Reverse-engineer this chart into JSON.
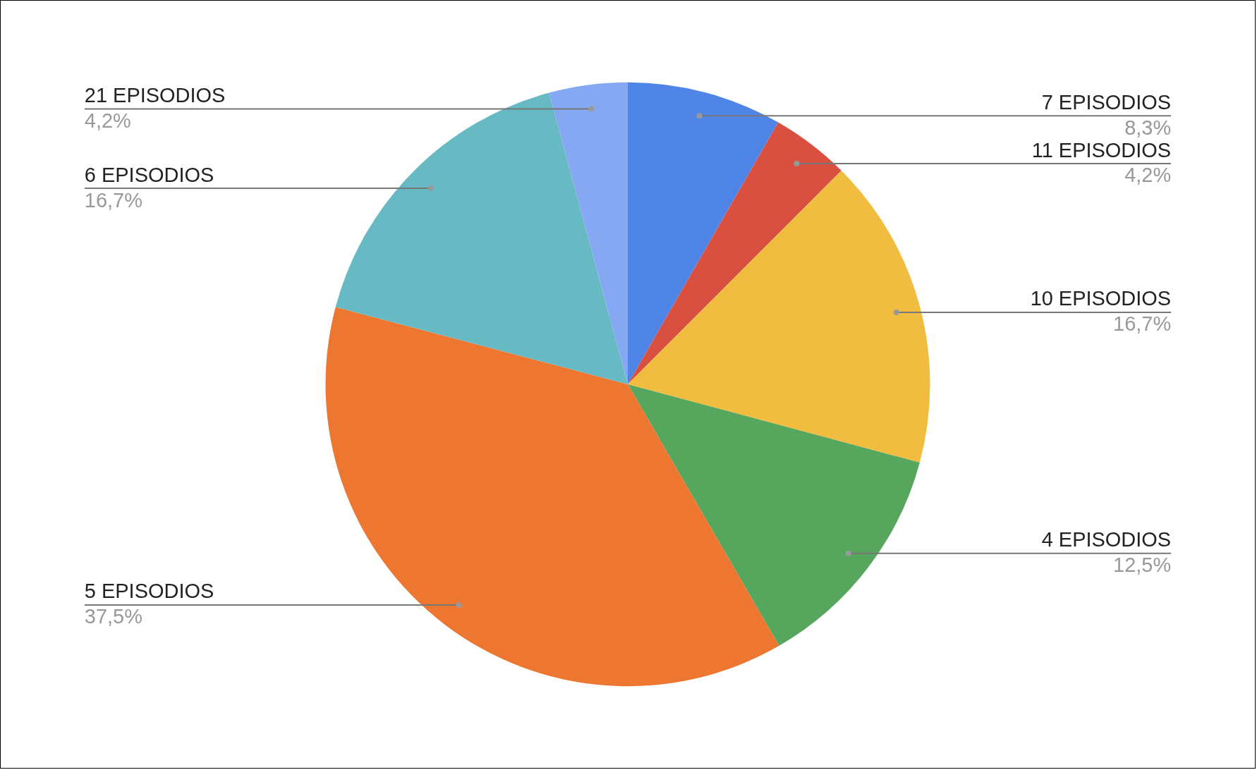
{
  "chart_data": {
    "type": "pie",
    "categories": [
      "7 EPISODIOS",
      "11 EPISODIOS",
      "10 EPISODIOS",
      "4 EPISODIOS",
      "5 EPISODIOS",
      "6 EPISODIOS",
      "21 EPISODIOS"
    ],
    "values": [
      8.3,
      4.2,
      16.7,
      12.5,
      37.5,
      16.7,
      4.2
    ],
    "colors": [
      "#5085e8",
      "#d95040",
      "#f1bd41",
      "#57a65e",
      "#ed7630",
      "#67bac4",
      "#86a8f3"
    ],
    "value_labels": [
      "8,3%",
      "4,2%",
      "16,7%",
      "12,5%",
      "37,5%",
      "16,7%",
      "4,2%"
    ],
    "legend": false
  }
}
